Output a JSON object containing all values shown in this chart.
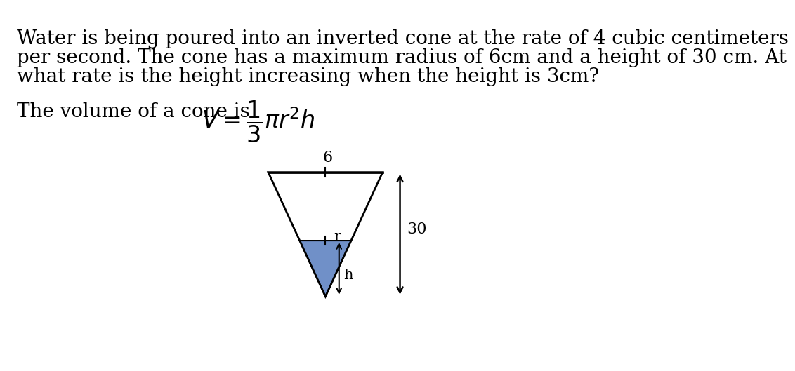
{
  "background_color": "#ffffff",
  "text_line1": "Water is being poured into an inverted cone at the rate of 4 cubic centimeters",
  "text_line2": "per second. The cone has a maximum radius of 6cm and a height of 30 cm. At",
  "text_line3": "what rate is the height increasing when the height is 3cm?",
  "font_size_text": 20,
  "font_size_formula": 24,
  "cone_color_outline": "#000000",
  "water_color": "#7090c8",
  "label_6": "6",
  "label_r": "r",
  "label_h": "h",
  "label_30": "30",
  "text_color": "#000000",
  "diagram_font_size": 14
}
